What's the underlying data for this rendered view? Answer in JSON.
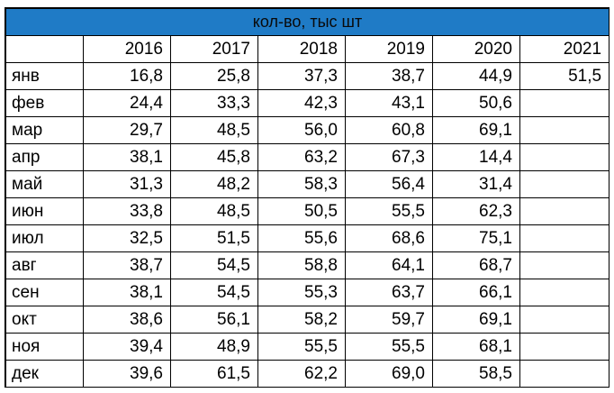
{
  "table": {
    "title": "кол-во, тыс шт",
    "header": [
      "",
      "2016",
      "2017",
      "2018",
      "2019",
      "2020",
      "2021"
    ],
    "rows": [
      {
        "month": "янв",
        "values": [
          "16,8",
          "25,8",
          "37,3",
          "38,7",
          "44,9",
          "51,5"
        ]
      },
      {
        "month": "фев",
        "values": [
          "24,4",
          "33,3",
          "42,3",
          "43,1",
          "50,6",
          ""
        ]
      },
      {
        "month": "мар",
        "values": [
          "29,7",
          "48,5",
          "56,0",
          "60,8",
          "69,1",
          ""
        ]
      },
      {
        "month": "апр",
        "values": [
          "38,1",
          "45,8",
          "63,2",
          "67,3",
          "14,4",
          ""
        ]
      },
      {
        "month": "май",
        "values": [
          "31,3",
          "48,2",
          "58,3",
          "56,4",
          "31,4",
          ""
        ]
      },
      {
        "month": "июн",
        "values": [
          "33,8",
          "48,5",
          "50,5",
          "55,5",
          "62,3",
          ""
        ]
      },
      {
        "month": "июл",
        "values": [
          "32,5",
          "51,5",
          "55,6",
          "68,6",
          "75,1",
          ""
        ]
      },
      {
        "month": "авг",
        "values": [
          "38,7",
          "54,5",
          "58,8",
          "64,1",
          "68,7",
          ""
        ]
      },
      {
        "month": "сен",
        "values": [
          "38,1",
          "54,5",
          "55,3",
          "63,7",
          "66,1",
          ""
        ]
      },
      {
        "month": "окт",
        "values": [
          "38,6",
          "56,1",
          "58,2",
          "59,7",
          "69,1",
          ""
        ]
      },
      {
        "month": "ноя",
        "values": [
          "39,4",
          "48,9",
          "55,5",
          "55,5",
          "68,1",
          ""
        ]
      },
      {
        "month": "дек",
        "values": [
          "39,6",
          "61,5",
          "62,2",
          "69,0",
          "58,5",
          ""
        ]
      }
    ]
  },
  "colors": {
    "title_fill": "#1f7bc6",
    "border": "#000000"
  }
}
